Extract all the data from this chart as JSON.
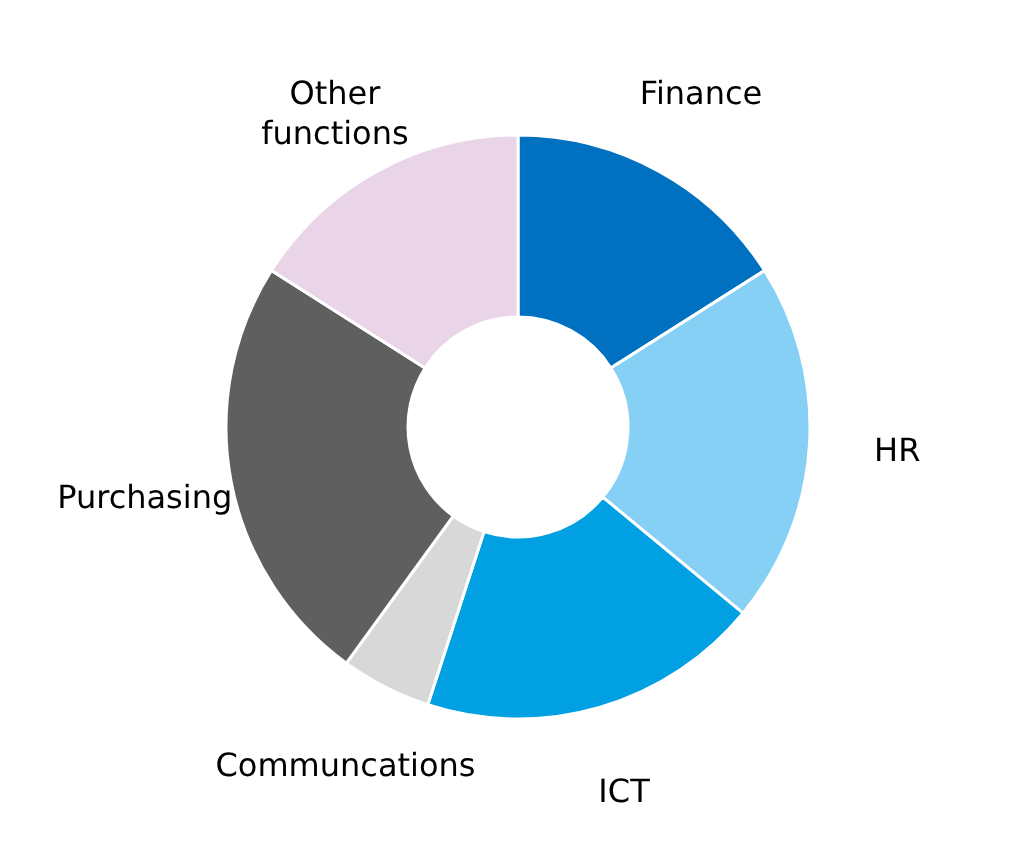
{
  "chart_data": {
    "type": "donut",
    "categories": [
      "Finance",
      "HR",
      "ICT",
      "Communcations",
      "Purchasing",
      "Other functions"
    ],
    "values": [
      16,
      20,
      19,
      5,
      24,
      16
    ],
    "colors": [
      "#0070c0",
      "#87d0f5",
      "#00a0e3",
      "#d8d8d8",
      "#5f5f5f",
      "#ead5e8"
    ],
    "legend": false
  }
}
